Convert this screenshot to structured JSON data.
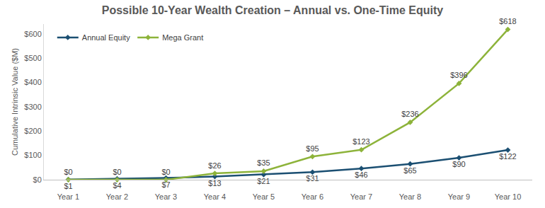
{
  "chart_data": {
    "type": "line",
    "title": "Possible 10-Year Wealth Creation – Annual vs. One-Time Equity",
    "y_label": "Cumulative Intrinsic Value ($M)",
    "categories": [
      "Year 1",
      "Year 2",
      "Year 3",
      "Year 4",
      "Year 5",
      "Year 6",
      "Year 7",
      "Year 8",
      "Year 9",
      "Year 10"
    ],
    "series": [
      {
        "name": "Annual Equity",
        "color": "#1b4f72",
        "marker": "diamond",
        "values": [
          1,
          4,
          7,
          13,
          21,
          31,
          46,
          65,
          90,
          122
        ],
        "value_labels": [
          "$1",
          "$4",
          "$7",
          "$13",
          "$21",
          "$31",
          "$46",
          "$65",
          "$90",
          "$122"
        ]
      },
      {
        "name": "Mega Grant",
        "color": "#8db33a",
        "marker": "diamond",
        "values": [
          0,
          0,
          0,
          26,
          35,
          95,
          123,
          236,
          396,
          618
        ],
        "value_labels": [
          "$0",
          "$0",
          "$0",
          "$26",
          "$35",
          "$95",
          "$123",
          "$236",
          "$396",
          "$618"
        ]
      }
    ],
    "ylim": [
      0,
      640
    ],
    "yticks": [
      {
        "value": 0,
        "label": "$0"
      },
      {
        "value": 100,
        "label": "$100"
      },
      {
        "value": 200,
        "label": "$200"
      },
      {
        "value": 300,
        "label": "$300"
      },
      {
        "value": 400,
        "label": "$400"
      },
      {
        "value": 500,
        "label": "$500"
      },
      {
        "value": 600,
        "label": "$600"
      }
    ],
    "grid": false,
    "legend": "upper left",
    "data_labels": true
  }
}
